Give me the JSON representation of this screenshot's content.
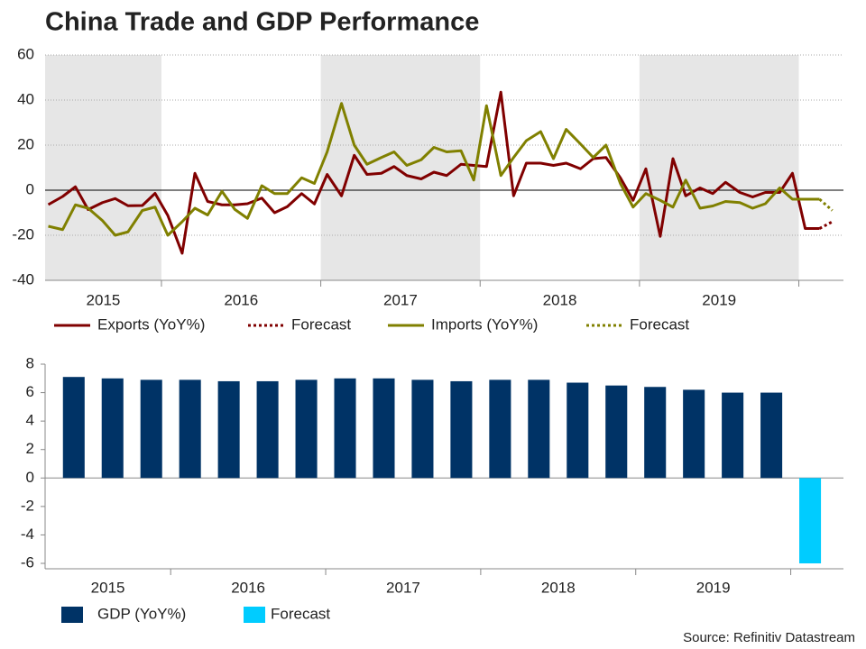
{
  "title": "China Trade and GDP Performance",
  "source": "Source: Refinitiv Datastream",
  "chart_data": [
    {
      "type": "line",
      "x": [
        2015.29,
        2015.38,
        2015.46,
        2015.54,
        2015.63,
        2015.71,
        2015.79,
        2015.88,
        2015.96,
        2016.04,
        2016.13,
        2016.21,
        2016.29,
        2016.38,
        2016.46,
        2016.54,
        2016.63,
        2016.71,
        2016.79,
        2016.88,
        2016.96,
        2017.04,
        2017.13,
        2017.21,
        2017.29,
        2017.38,
        2017.46,
        2017.54,
        2017.63,
        2017.71,
        2017.79,
        2017.88,
        2017.96,
        2018.04,
        2018.13,
        2018.21,
        2018.29,
        2018.38,
        2018.46,
        2018.54,
        2018.63,
        2018.71,
        2018.79,
        2018.88,
        2018.96,
        2019.04,
        2019.13,
        2019.21,
        2019.29,
        2019.38,
        2019.46,
        2019.54,
        2019.63,
        2019.71,
        2019.79,
        2019.88,
        2019.96,
        2020.04,
        2020.13
      ],
      "series": [
        {
          "name": "Exports (YoY%)",
          "color": "#800000",
          "dashed": false,
          "values": [
            -6.4,
            -2.8,
            1.5,
            -8.6,
            -5.5,
            -3.7,
            -6.9,
            -6.8,
            -1.4,
            -11.2,
            -28.0,
            7.5,
            -5.0,
            -6.5,
            -6.5,
            -6.0,
            -3.5,
            -10.0,
            -7.3,
            -1.5,
            -6.1,
            7.0,
            -2.5,
            15.5,
            7.0,
            7.5,
            10.5,
            6.5,
            5.0,
            8.0,
            6.5,
            11.5,
            11.0,
            10.5,
            43.5,
            -2.5,
            12.0,
            12.0,
            11.0,
            12.0,
            9.5,
            14.0,
            14.5,
            5.5,
            -4.5,
            9.5,
            -20.5,
            14.0,
            -2.5,
            1.0,
            -1.5,
            3.5,
            -1.0,
            -3.0,
            -1.0,
            -1.0,
            7.5,
            -17.0,
            -17.0
          ]
        },
        {
          "name": "Forecast",
          "color": "#800000",
          "dashed": true,
          "x": [
            2020.13,
            2020.21
          ],
          "values": [
            -17.0,
            -14.0
          ]
        },
        {
          "name": "Imports (YoY%)",
          "color": "#808000",
          "dashed": false,
          "values": [
            -16.0,
            -17.5,
            -6.5,
            -8.0,
            -13.5,
            -20.0,
            -18.5,
            -9.0,
            -7.5,
            -20.0,
            -14.0,
            -8.0,
            -11.0,
            -0.5,
            -8.5,
            -12.5,
            2.0,
            -1.5,
            -1.5,
            5.5,
            3.0,
            17.0,
            38.5,
            20.0,
            11.5,
            14.5,
            17.0,
            11.0,
            13.5,
            19.0,
            17.0,
            17.5,
            4.5,
            37.5,
            6.5,
            14.5,
            22.0,
            26.0,
            14.0,
            27.0,
            20.5,
            14.5,
            20.0,
            3.0,
            -7.5,
            -1.5,
            -4.5,
            -7.5,
            4.5,
            -8.0,
            -7.0,
            -5.0,
            -5.5,
            -8.0,
            -6.0,
            1.0,
            -4.0,
            -4.0,
            -4.0
          ]
        },
        {
          "name": "Forecast",
          "color": "#808000",
          "dashed": true,
          "x": [
            2020.13,
            2020.21
          ],
          "values": [
            -4.0,
            -9.0
          ]
        }
      ],
      "xlim": [
        2015.27,
        2020.28
      ],
      "xticks": [
        {
          "value": 2015.5,
          "label": "2015"
        },
        {
          "value": 2016.5,
          "label": "2016"
        },
        {
          "value": 2017.5,
          "label": "2017"
        },
        {
          "value": 2018.5,
          "label": "2018"
        },
        {
          "value": 2019.5,
          "label": "2019"
        }
      ],
      "ylim": [
        -40,
        60
      ],
      "yticks": [
        -40,
        -20,
        0,
        20,
        40,
        60
      ],
      "grid": true,
      "shaded_years": true,
      "legend": "bottom"
    },
    {
      "type": "bar",
      "x": [
        2015.375,
        2015.625,
        2015.875,
        2016.125,
        2016.375,
        2016.625,
        2016.875,
        2017.125,
        2017.375,
        2017.625,
        2017.875,
        2018.125,
        2018.375,
        2018.625,
        2018.875,
        2019.125,
        2019.375,
        2019.625,
        2019.875
      ],
      "series": [
        {
          "name": "GDP (YoY%)",
          "color": "#003366",
          "values": [
            7.1,
            7.0,
            6.9,
            6.9,
            6.8,
            6.8,
            6.9,
            7.0,
            7.0,
            6.9,
            6.8,
            6.9,
            6.9,
            6.7,
            6.5,
            6.4,
            6.2,
            6.0,
            6.0
          ]
        },
        {
          "name": "Forecast",
          "color": "#00ccff",
          "x": [
            2020.125
          ],
          "values": [
            -6.0
          ]
        }
      ],
      "xlim": [
        2015.19,
        2020.34
      ],
      "xticks": [
        {
          "value": 2015.5,
          "label": "2015"
        },
        {
          "value": 2016.5,
          "label": "2016"
        },
        {
          "value": 2017.5,
          "label": "2017"
        },
        {
          "value": 2018.5,
          "label": "2018"
        },
        {
          "value": 2019.5,
          "label": "2019"
        }
      ],
      "ylim": [
        -6,
        8
      ],
      "yticks": [
        -6,
        -4,
        -2,
        0,
        2,
        4,
        6,
        8
      ],
      "grid": false,
      "legend": "bottom"
    }
  ]
}
